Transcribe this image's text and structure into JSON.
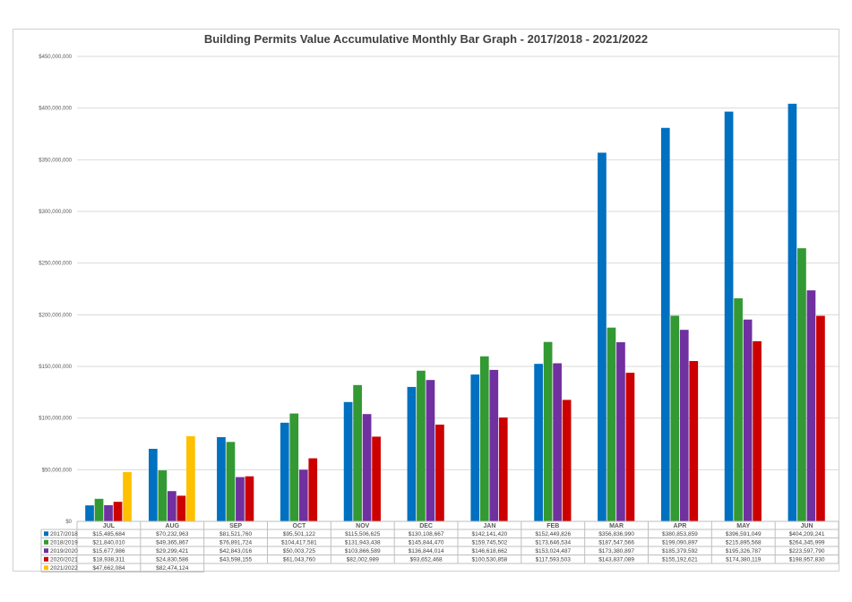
{
  "chart_data": {
    "type": "bar",
    "title": "Building Permits Value Accumulative Monthly Bar Graph - 2017/2018 - 2021/2022",
    "xlabel": "",
    "ylabel": "",
    "ylim": [
      0,
      450000000
    ],
    "yticks": [
      0,
      50000000,
      100000000,
      150000000,
      200000000,
      250000000,
      300000000,
      350000000,
      400000000,
      450000000
    ],
    "ytick_labels": [
      "$0",
      "$50,000,000",
      "$100,000,000",
      "$150,000,000",
      "$200,000,000",
      "$250,000,000",
      "$300,000,000",
      "$350,000,000",
      "$400,000,000",
      "$450,000,000"
    ],
    "categories": [
      "JUL",
      "AUG",
      "SEP",
      "OCT",
      "NOV",
      "DEC",
      "JAN",
      "FEB",
      "MAR",
      "APR",
      "MAY",
      "JUN"
    ],
    "grid": true,
    "legend_placement": "data-table-left",
    "series": [
      {
        "name": "2017/2018",
        "color": "#0070c0",
        "values": [
          15485684,
          70232963,
          81521760,
          95501122,
          115506625,
          130108667,
          142141420,
          152449826,
          356836990,
          380853859,
          396591049,
          404209241
        ],
        "labels": [
          "$15,485,684",
          "$70,232,963",
          "$81,521,760",
          "$95,501,122",
          "$115,506,625",
          "$130,108,667",
          "$142,141,420",
          "$152,449,826",
          "$356,836,990",
          "$380,853,859",
          "$396,591,049",
          "$404,209,241"
        ]
      },
      {
        "name": "2018/2019",
        "color": "#339933",
        "values": [
          21840010,
          49365867,
          76891724,
          104417581,
          131943438,
          145844470,
          159745502,
          173646534,
          187547566,
          199090897,
          215895568,
          264345999
        ],
        "labels": [
          "$21,840,010",
          "$49,365,867",
          "$76,891,724",
          "$104,417,581",
          "$131,943,438",
          "$145,844,470",
          "$159,745,502",
          "$173,646,534",
          "$187,547,566",
          "$199,090,897",
          "$215,895,568",
          "$264,345,999"
        ]
      },
      {
        "name": "2019/2020",
        "color": "#7030a0",
        "values": [
          15677986,
          29299421,
          42843016,
          50003725,
          103866589,
          136844014,
          146618662,
          153024487,
          173380897,
          185379592,
          195326787,
          223597790
        ],
        "labels": [
          "$15,677,986",
          "$29,299,421",
          "$42,843,016",
          "$50,003,725",
          "$103,866,589",
          "$136,844,014",
          "$146,618,662",
          "$153,024,487",
          "$173,380,897",
          "$185,379,592",
          "$195,326,787",
          "$223,597,790"
        ]
      },
      {
        "name": "2020/2021",
        "color": "#cc0000",
        "values": [
          18938311,
          24830586,
          43598155,
          61043760,
          82002989,
          93652468,
          100530858,
          117593503,
          143837089,
          155192621,
          174380119,
          198957830
        ],
        "labels": [
          "$18,938,311",
          "$24,830,586",
          "$43,598,155",
          "$61,043,760",
          "$82,002,989",
          "$93,652,468",
          "$100,530,858",
          "$117,593,503",
          "$143,837,089",
          "$155,192,621",
          "$174,380,119",
          "$198,957,830"
        ]
      },
      {
        "name": "2021/2022",
        "color": "#ffc000",
        "values": [
          47662084,
          82474124,
          null,
          null,
          null,
          null,
          null,
          null,
          null,
          null,
          null,
          null
        ],
        "labels": [
          "$47,662,084",
          "$82,474,124",
          "",
          "",
          "",
          "",
          "",
          "",
          "",
          "",
          "",
          ""
        ]
      }
    ]
  }
}
